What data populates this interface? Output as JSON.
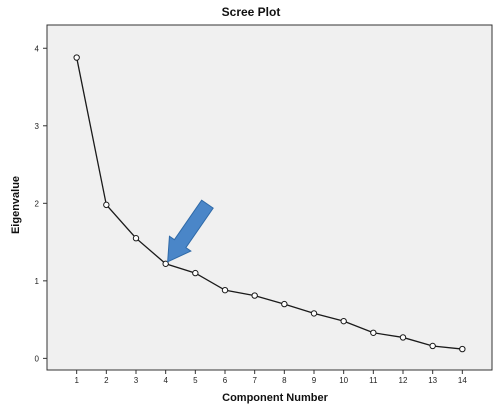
{
  "chart_data": {
    "type": "line",
    "title": "Scree Plot",
    "xlabel": "Component Number",
    "ylabel": "Eigenvalue",
    "x": [
      1,
      2,
      3,
      4,
      5,
      6,
      7,
      8,
      9,
      10,
      11,
      12,
      13,
      14
    ],
    "series": [
      {
        "values": [
          3.88,
          1.98,
          1.55,
          1.22,
          1.1,
          0.88,
          0.81,
          0.7,
          0.58,
          0.48,
          0.33,
          0.27,
          0.16,
          0.12
        ]
      }
    ],
    "xlim": [
      0,
      15
    ],
    "ylim": [
      -0.15,
      4.3
    ],
    "xticks": [
      "1",
      "2",
      "3",
      "4",
      "5",
      "6",
      "7",
      "8",
      "9",
      "10",
      "11",
      "12",
      "13",
      "14"
    ],
    "yticks": [
      "0",
      "1",
      "2",
      "3",
      "4"
    ],
    "grid": false,
    "legend": "none",
    "annotations": [
      {
        "type": "arrow",
        "points_to": {
          "x": 4,
          "y": 1.22
        },
        "color": "#4a86c8"
      }
    ],
    "colors": {
      "plot_background": "#f0f0f0",
      "line": "#1a1a1a",
      "marker_fill": "#ffffff",
      "axis": "#333333",
      "arrow": "#4a86c8"
    }
  }
}
